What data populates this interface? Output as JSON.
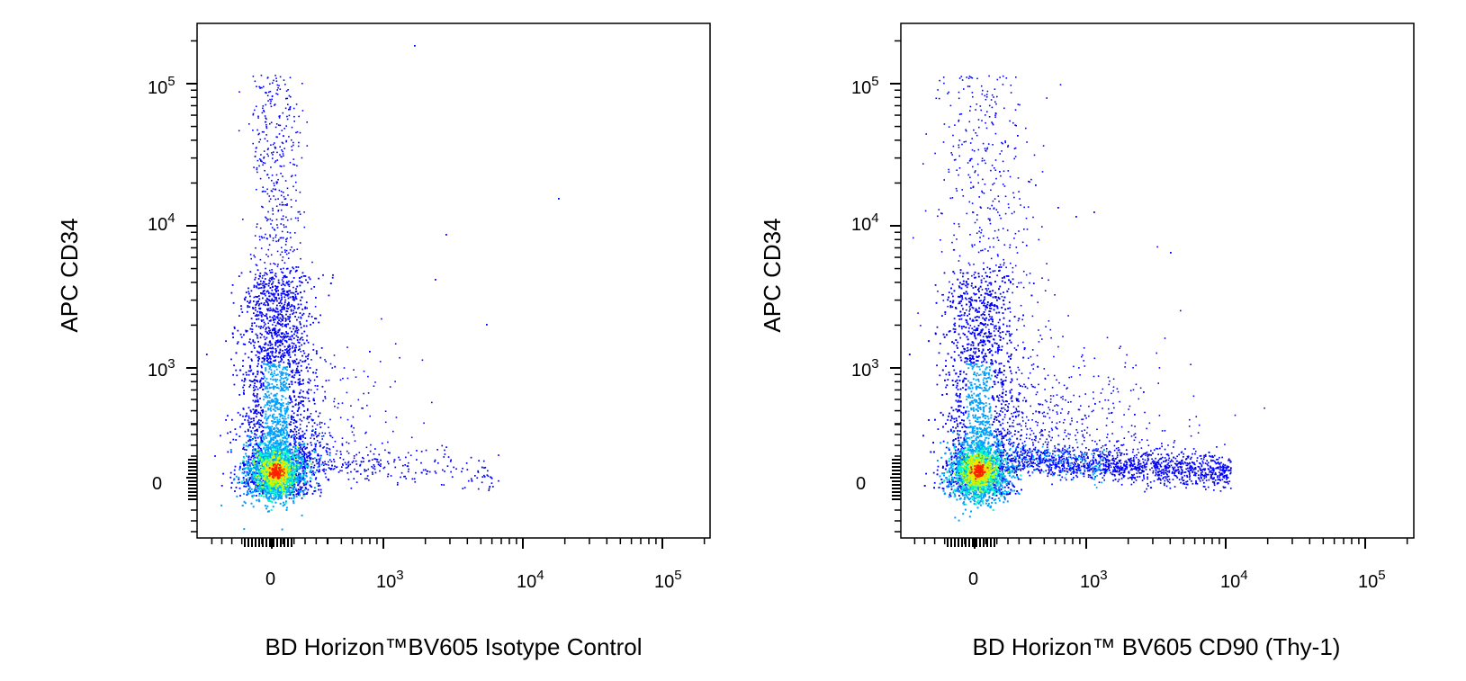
{
  "chart_data": [
    {
      "type": "scatter",
      "plot_style": "pseudocolor density dot plot (flow cytometry)",
      "xlabel": "BD Horizon™BV605 Isotype Control",
      "ylabel": "APC  CD34",
      "x_scale": "biexponential",
      "y_scale": "biexponential",
      "x_ticks": [
        {
          "label": "0",
          "value": 0
        },
        {
          "label": "10",
          "exp": "3",
          "value": 1000
        },
        {
          "label": "10",
          "exp": "4",
          "value": 10000
        },
        {
          "label": "10",
          "exp": "5",
          "value": 100000
        }
      ],
      "y_ticks": [
        {
          "label": "0",
          "value": 0
        },
        {
          "label": "10",
          "exp": "3",
          "value": 1000
        },
        {
          "label": "10",
          "exp": "4",
          "value": 10000
        },
        {
          "label": "10",
          "exp": "5",
          "value": 100000
        }
      ],
      "xlim": [
        -300,
        250000
      ],
      "ylim": [
        -300,
        250000
      ],
      "populations": [
        {
          "name": "main",
          "center": [
            0,
            0
          ],
          "density": "highest (red core)"
        },
        {
          "name": "CD34+ tail",
          "x_range": [
            -200,
            400
          ],
          "y_range": [
            1000,
            80000
          ],
          "density": "low"
        }
      ],
      "density_colors": [
        "#0000ff",
        "#00a0ff",
        "#00ffc0",
        "#c0ff00",
        "#ffe000",
        "#ff2000"
      ]
    },
    {
      "type": "scatter",
      "plot_style": "pseudocolor density dot plot (flow cytometry)",
      "xlabel": "BD Horizon™ BV605  CD90 (Thy-1)",
      "ylabel": "APC  CD34",
      "x_scale": "biexponential",
      "y_scale": "biexponential",
      "x_ticks": [
        {
          "label": "0",
          "value": 0
        },
        {
          "label": "10",
          "exp": "3",
          "value": 1000
        },
        {
          "label": "10",
          "exp": "4",
          "value": 10000
        },
        {
          "label": "10",
          "exp": "5",
          "value": 100000
        }
      ],
      "y_ticks": [
        {
          "label": "0",
          "value": 0
        },
        {
          "label": "10",
          "exp": "3",
          "value": 1000
        },
        {
          "label": "10",
          "exp": "4",
          "value": 10000
        },
        {
          "label": "10",
          "exp": "5",
          "value": 100000
        }
      ],
      "xlim": [
        -300,
        250000
      ],
      "ylim": [
        -300,
        250000
      ],
      "populations": [
        {
          "name": "main",
          "center": [
            0,
            0
          ],
          "density": "highest (red core)"
        },
        {
          "name": "CD34+ tail",
          "x_range": [
            -200,
            2500
          ],
          "y_range": [
            1000,
            80000
          ],
          "density": "low"
        },
        {
          "name": "CD90+ CD34- tail",
          "x_range": [
            300,
            7000
          ],
          "y_range": [
            -100,
            300
          ],
          "density": "moderate"
        }
      ],
      "density_colors": [
        "#0000ff",
        "#00a0ff",
        "#00ffc0",
        "#c0ff00",
        "#ffe000",
        "#ff2000"
      ]
    }
  ]
}
